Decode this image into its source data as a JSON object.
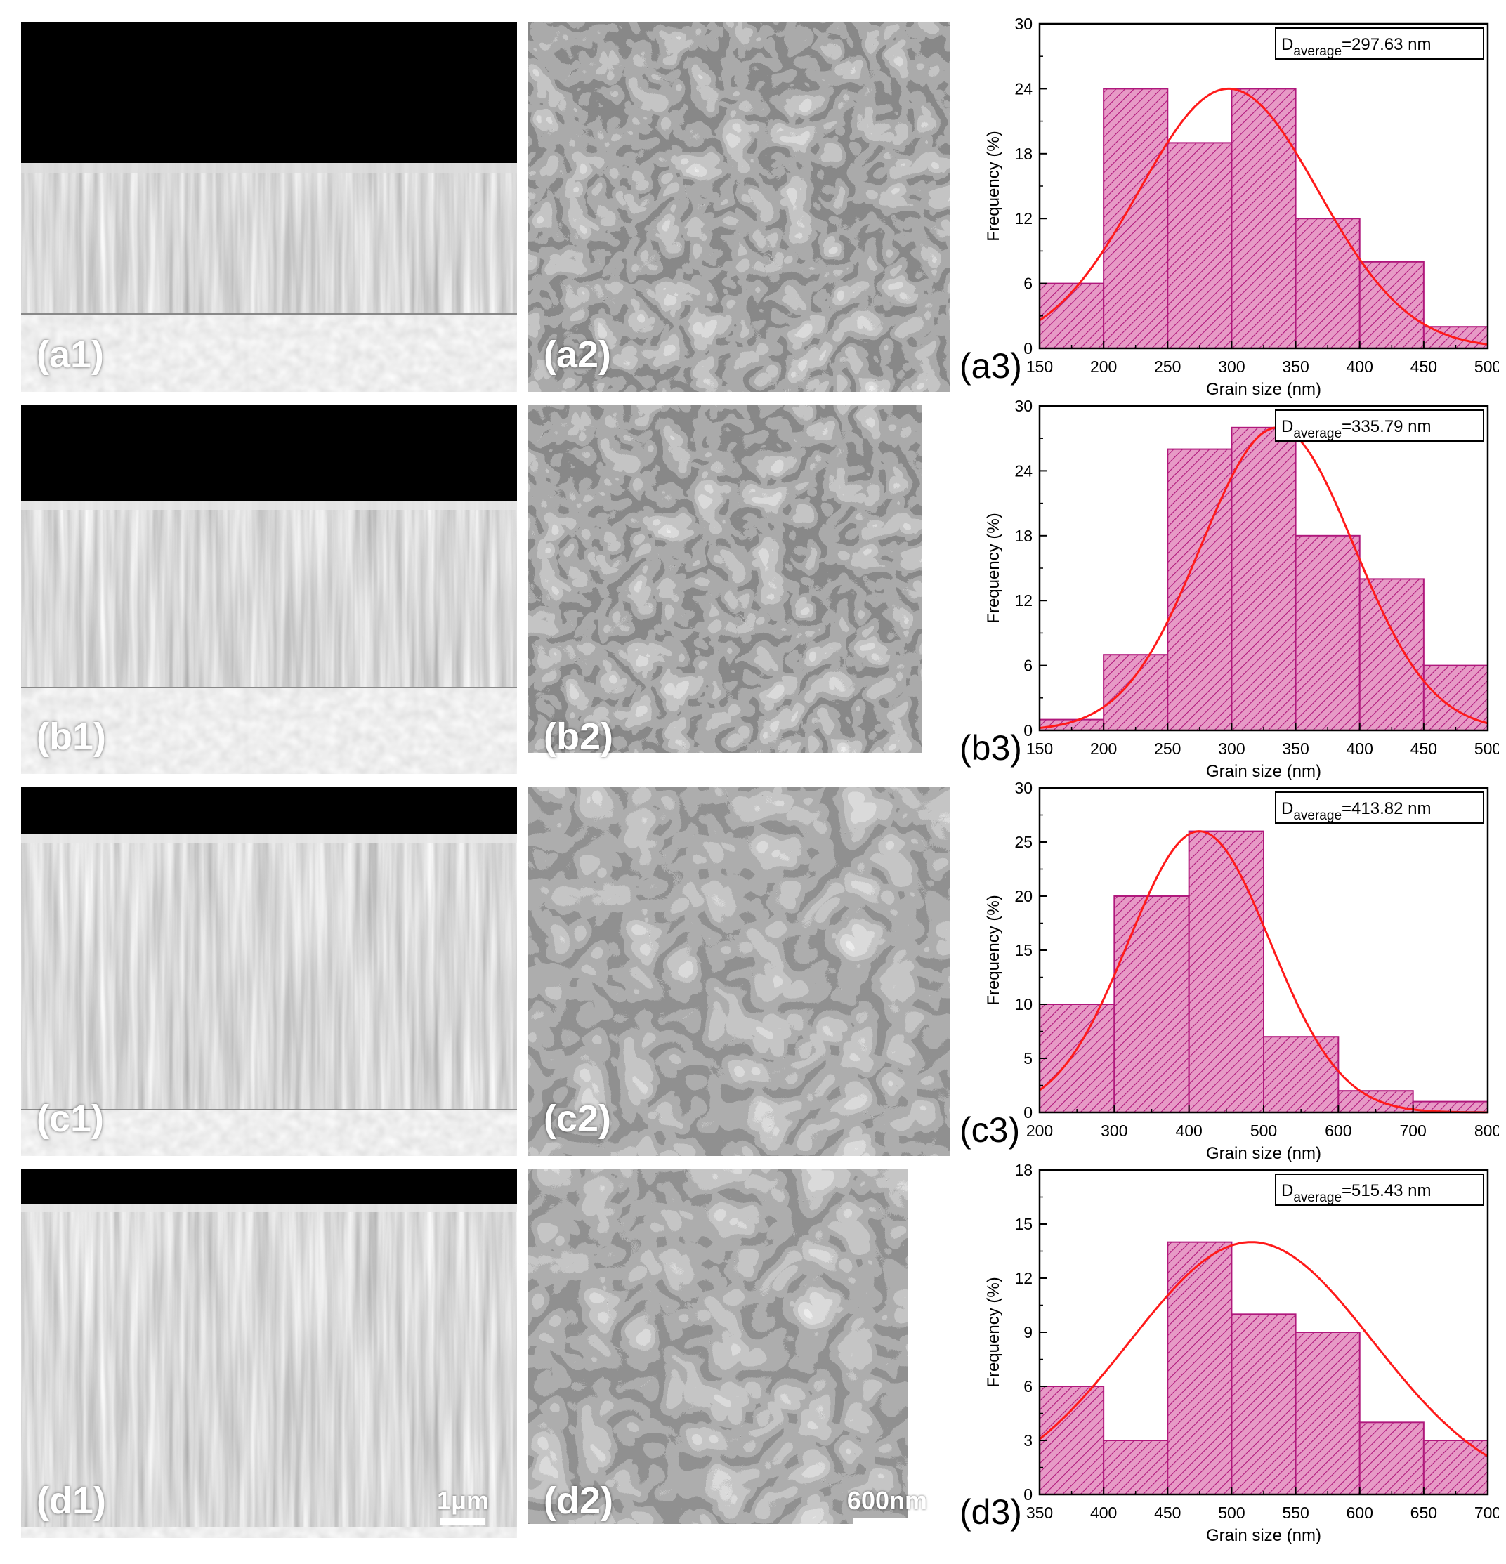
{
  "panels": {
    "cross_section": [
      {
        "label": "(a1)"
      },
      {
        "label": "(b1)"
      },
      {
        "label": "(c1)"
      },
      {
        "label": "(d1)",
        "scale_bar": "1μm"
      }
    ],
    "surface": [
      {
        "label": "(a2)"
      },
      {
        "label": "(b2)"
      },
      {
        "label": "(c2)"
      },
      {
        "label": "(d2)",
        "scale_bar": "600nm"
      }
    ]
  },
  "colors": {
    "bar_fill": "#e79ac6",
    "bar_edge": "#b0187c",
    "hatch": "#b0187c",
    "fit_line": "#ff1a1a",
    "axis": "#000000"
  },
  "chart_data": [
    {
      "type": "bar",
      "label": "(a3)",
      "annotation_main": "D",
      "annotation_sub": "average",
      "annotation_value": "=297.63 nm",
      "xlabel": "Grain size (nm)",
      "ylabel": "Frequency (%)",
      "xlim": [
        150,
        500
      ],
      "ylim": [
        0,
        30
      ],
      "xticks": [
        150,
        200,
        250,
        300,
        350,
        400,
        450,
        500
      ],
      "yticks": [
        0,
        6,
        12,
        18,
        24,
        30
      ],
      "bin_edges": [
        150,
        200,
        250,
        300,
        350,
        400,
        450,
        500
      ],
      "values": [
        6,
        24,
        19,
        24,
        12,
        8,
        2
      ],
      "fit": {
        "type": "gaussian",
        "mean": 297.63,
        "sigma": 70,
        "peak": 24
      }
    },
    {
      "type": "bar",
      "label": "(b3)",
      "annotation_main": "D",
      "annotation_sub": "average",
      "annotation_value": "=335.79 nm",
      "xlabel": "Grain size (nm)",
      "ylabel": "Frequency (%)",
      "xlim": [
        150,
        500
      ],
      "ylim": [
        0,
        30
      ],
      "xticks": [
        150,
        200,
        250,
        300,
        350,
        400,
        450,
        500
      ],
      "yticks": [
        0,
        6,
        12,
        18,
        24,
        30
      ],
      "bin_edges": [
        150,
        200,
        250,
        300,
        350,
        400,
        450,
        500
      ],
      "values": [
        1,
        7,
        26,
        28,
        18,
        14,
        6
      ],
      "fit": {
        "type": "gaussian",
        "mean": 335.79,
        "sigma": 60,
        "peak": 28
      }
    },
    {
      "type": "bar",
      "label": "(c3)",
      "annotation_main": "D",
      "annotation_sub": "average",
      "annotation_value": "=413.82 nm",
      "xlabel": "Grain size (nm)",
      "ylabel": "Frequency (%)",
      "xlim": [
        200,
        800
      ],
      "ylim": [
        0,
        30
      ],
      "xticks": [
        200,
        300,
        400,
        500,
        600,
        700,
        800
      ],
      "yticks": [
        0,
        5,
        10,
        15,
        20,
        25,
        30
      ],
      "bin_edges": [
        200,
        300,
        400,
        500,
        600,
        700,
        800
      ],
      "values": [
        10,
        20,
        26,
        7,
        2,
        1
      ],
      "fit": {
        "type": "gaussian",
        "mean": 413.82,
        "sigma": 95,
        "peak": 26
      }
    },
    {
      "type": "bar",
      "label": "(d3)",
      "annotation_main": "D",
      "annotation_sub": "average",
      "annotation_value": "=515.43 nm",
      "xlabel": "Grain size (nm)",
      "ylabel": "Frequency (%)",
      "xlim": [
        350,
        700
      ],
      "ylim": [
        0,
        18
      ],
      "xticks": [
        350,
        400,
        450,
        500,
        550,
        600,
        650,
        700
      ],
      "yticks": [
        0,
        3,
        6,
        9,
        12,
        15,
        18
      ],
      "bin_edges": [
        350,
        400,
        450,
        500,
        550,
        600,
        650,
        700
      ],
      "values": [
        6,
        3,
        14,
        10,
        9,
        4,
        3
      ],
      "fit": {
        "type": "gaussian",
        "mean": 515.43,
        "sigma": 95,
        "peak": 14
      }
    }
  ]
}
